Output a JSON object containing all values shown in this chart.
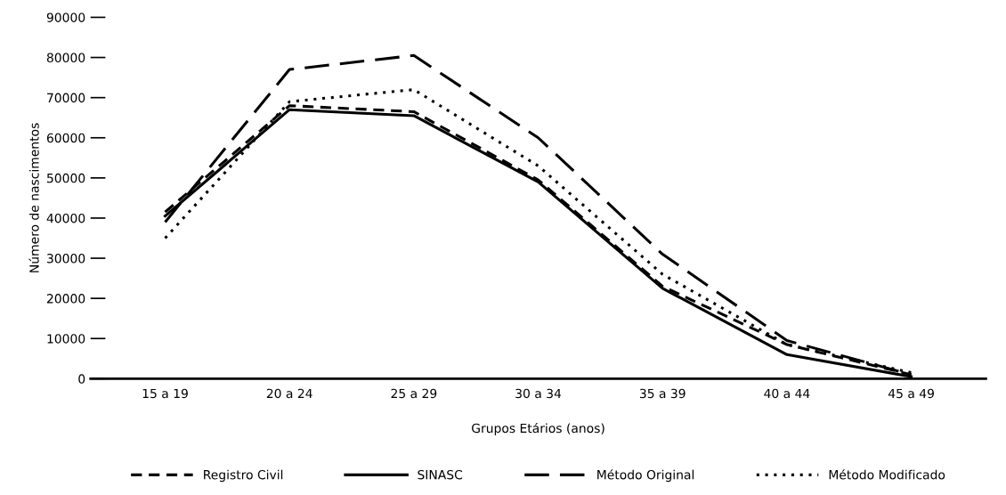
{
  "chart_data": {
    "type": "line",
    "xlabel": "Grupos Etários (anos)",
    "ylabel": "Número de nascimentos",
    "categories": [
      "15 a 19",
      "20 a 24",
      "25 a 29",
      "30 a 34",
      "35 a 39",
      "40 a 44",
      "45 a 49"
    ],
    "series": [
      {
        "name": "Registro Civil",
        "color": "#000000",
        "line_style": "dashed",
        "values": [
          41500,
          68000,
          66500,
          49500,
          23000,
          8500,
          1000
        ]
      },
      {
        "name": "SINASC",
        "color": "#000000",
        "line_style": "solid",
        "values": [
          40500,
          67000,
          65500,
          49000,
          22500,
          6000,
          500
        ]
      },
      {
        "name": "Método Original",
        "color": "#000000",
        "line_style": "dashed",
        "values": [
          39000,
          77000,
          80500,
          60000,
          31000,
          9500,
          1000
        ]
      },
      {
        "name": "Método Modificado",
        "color": "#000000",
        "line_style": "dotted",
        "values": [
          35000,
          69000,
          72000,
          53000,
          26000,
          8500,
          1500
        ]
      }
    ],
    "ylim": [
      0,
      90000
    ],
    "yticks": [
      0,
      10000,
      20000,
      30000,
      40000,
      50000,
      60000,
      70000,
      80000,
      90000
    ],
    "grid": false,
    "legend": "bottom",
    "marker": "none"
  }
}
